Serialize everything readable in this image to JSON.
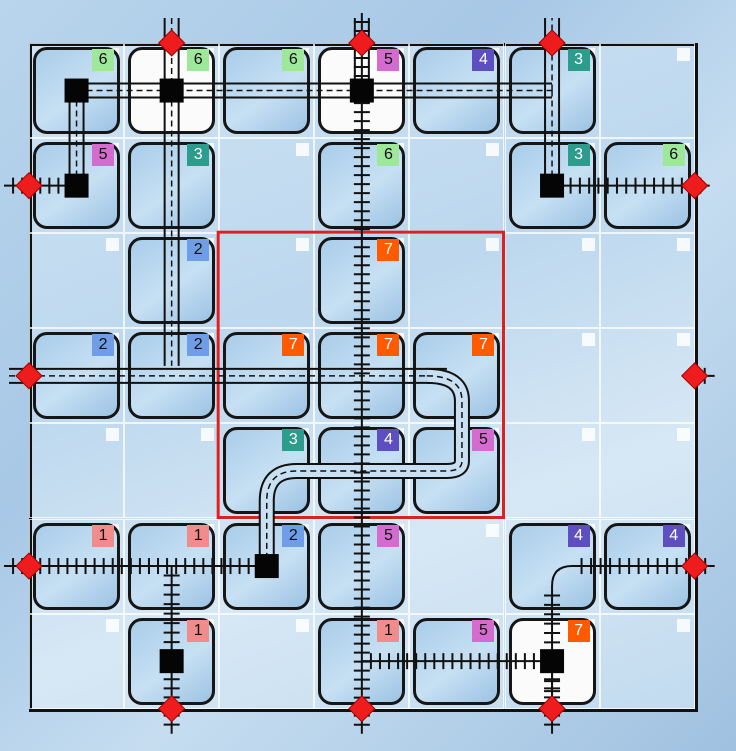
{
  "board": {
    "rows": 7,
    "cols": 7
  },
  "colors": {
    "1": "#f08c8c",
    "2": "#6f9ee6",
    "3": "#2d9c8c",
    "4": "#5d4fbf",
    "5": "#d46cd0",
    "6": "#9ee89a",
    "7": "#ff5a00"
  },
  "tiles": [
    {
      "row": 0,
      "col": 0,
      "number": "6",
      "white": false
    },
    {
      "row": 0,
      "col": 1,
      "number": "6",
      "white": true
    },
    {
      "row": 0,
      "col": 2,
      "number": "6",
      "white": false
    },
    {
      "row": 0,
      "col": 3,
      "number": "5",
      "white": true
    },
    {
      "row": 0,
      "col": 4,
      "number": "4",
      "white": false
    },
    {
      "row": 0,
      "col": 5,
      "number": "3",
      "white": false
    },
    {
      "row": 1,
      "col": 0,
      "number": "5",
      "white": false
    },
    {
      "row": 1,
      "col": 1,
      "number": "3",
      "white": false
    },
    {
      "row": 1,
      "col": 3,
      "number": "6",
      "white": false
    },
    {
      "row": 1,
      "col": 5,
      "number": "3",
      "white": false
    },
    {
      "row": 1,
      "col": 6,
      "number": "6",
      "white": false
    },
    {
      "row": 2,
      "col": 1,
      "number": "2",
      "white": false
    },
    {
      "row": 2,
      "col": 3,
      "number": "7",
      "white": false
    },
    {
      "row": 3,
      "col": 0,
      "number": "2",
      "white": false
    },
    {
      "row": 3,
      "col": 1,
      "number": "2",
      "white": false
    },
    {
      "row": 3,
      "col": 2,
      "number": "7",
      "white": false
    },
    {
      "row": 3,
      "col": 3,
      "number": "7",
      "white": false
    },
    {
      "row": 3,
      "col": 4,
      "number": "7",
      "white": false
    },
    {
      "row": 4,
      "col": 2,
      "number": "3",
      "white": false
    },
    {
      "row": 4,
      "col": 3,
      "number": "4",
      "white": false
    },
    {
      "row": 4,
      "col": 4,
      "number": "5",
      "white": false
    },
    {
      "row": 5,
      "col": 0,
      "number": "1",
      "white": false
    },
    {
      "row": 5,
      "col": 1,
      "number": "1",
      "white": false
    },
    {
      "row": 5,
      "col": 2,
      "number": "2",
      "white": false
    },
    {
      "row": 5,
      "col": 3,
      "number": "5",
      "white": false
    },
    {
      "row": 5,
      "col": 5,
      "number": "4",
      "white": false
    },
    {
      "row": 5,
      "col": 6,
      "number": "4",
      "white": false
    },
    {
      "row": 6,
      "col": 1,
      "number": "1",
      "white": false
    },
    {
      "row": 6,
      "col": 3,
      "number": "1",
      "white": false
    },
    {
      "row": 6,
      "col": 4,
      "number": "5",
      "white": false
    },
    {
      "row": 6,
      "col": 5,
      "number": "7",
      "white": true
    }
  ],
  "exits": [
    {
      "side": "top",
      "index": 1
    },
    {
      "side": "top",
      "index": 3
    },
    {
      "side": "top",
      "index": 5
    },
    {
      "side": "left",
      "index": 1
    },
    {
      "side": "left",
      "index": 3
    },
    {
      "side": "left",
      "index": 5
    },
    {
      "side": "right",
      "index": 1
    },
    {
      "side": "right",
      "index": 3
    },
    {
      "side": "right",
      "index": 5
    },
    {
      "side": "bottom",
      "index": 1
    },
    {
      "side": "bottom",
      "index": 3
    },
    {
      "side": "bottom",
      "index": 5
    }
  ],
  "stations": [
    {
      "row": 0,
      "col": 0
    },
    {
      "row": 0,
      "col": 1
    },
    {
      "row": 0,
      "col": 3
    },
    {
      "row": 1,
      "col": 0
    },
    {
      "row": 1,
      "col": 5
    },
    {
      "row": 5,
      "col": 2
    },
    {
      "row": 6,
      "col": 1
    },
    {
      "row": 6,
      "col": 5
    }
  ],
  "highlight_region": {
    "from_row": 2,
    "from_col": 2,
    "to_row": 4,
    "to_col": 4
  }
}
